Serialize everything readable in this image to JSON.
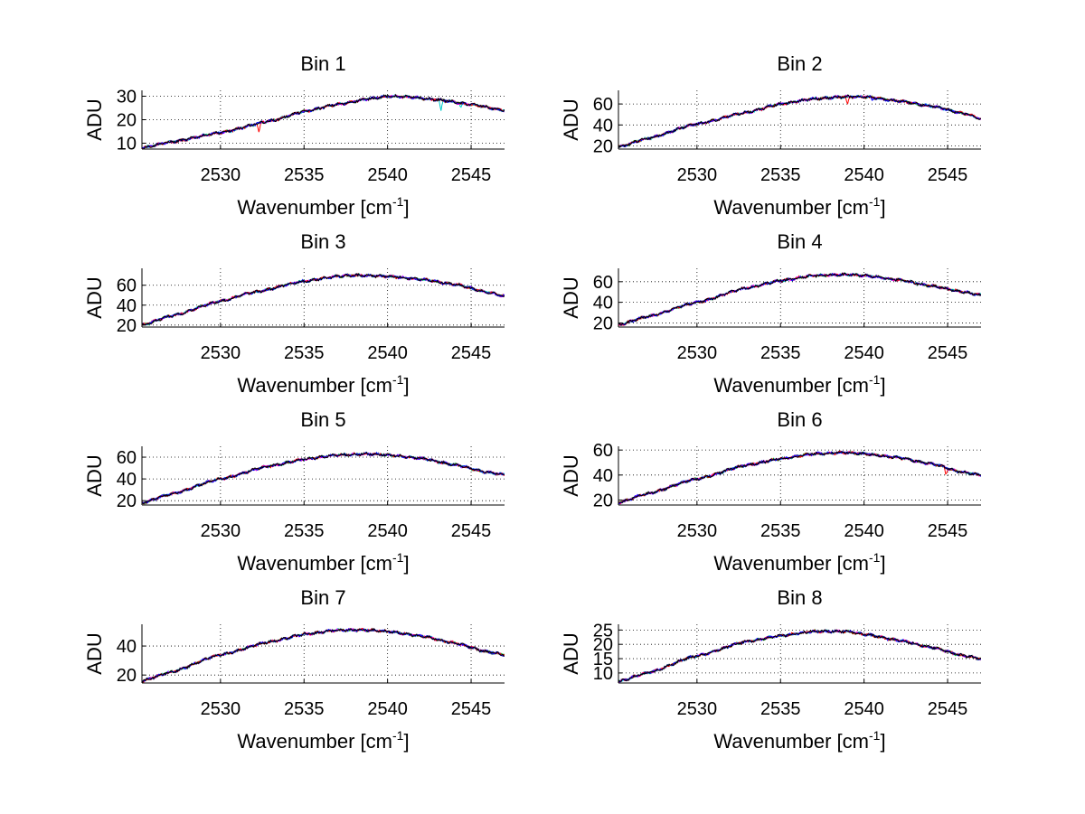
{
  "chart_data": [
    {
      "type": "line",
      "title": "Bin 1",
      "xlabel_prefix": "Wavenumber [cm",
      "xlabel_sup": "-1",
      "xlabel_suffix": "]",
      "ylabel": "ADU",
      "xlim": [
        2525.3,
        2547
      ],
      "ylim": [
        7.5,
        32.5
      ],
      "xticks": [
        2530,
        2535,
        2540,
        2545
      ],
      "yticks": [
        10,
        20,
        30
      ],
      "grid": true,
      "anchors": [
        [
          2525.3,
          8.0
        ],
        [
          2527,
          10.5
        ],
        [
          2530,
          14.5
        ],
        [
          2533,
          19.5
        ],
        [
          2535,
          23.5
        ],
        [
          2537,
          26.5
        ],
        [
          2539,
          29.0
        ],
        [
          2540,
          30.0
        ],
        [
          2541,
          29.8
        ],
        [
          2543,
          28.5
        ],
        [
          2545,
          26.5
        ],
        [
          2547,
          24.0
        ]
      ],
      "dips": [
        {
          "x": 2532.3,
          "depth": 4,
          "series": 0
        },
        {
          "x": 2543.2,
          "depth": 5,
          "series": 3
        },
        {
          "x": 2544.4,
          "depth": 2,
          "series": 3
        }
      ]
    },
    {
      "type": "line",
      "title": "Bin 2",
      "xlabel_prefix": "Wavenumber [cm",
      "xlabel_sup": "-1",
      "xlabel_suffix": "]",
      "ylabel": "ADU",
      "xlim": [
        2525.3,
        2547
      ],
      "ylim": [
        17,
        73
      ],
      "xticks": [
        2530,
        2535,
        2540,
        2545
      ],
      "yticks": [
        20,
        40,
        60
      ],
      "grid": true,
      "anchors": [
        [
          2525.3,
          19
        ],
        [
          2527,
          27
        ],
        [
          2530,
          41
        ],
        [
          2533,
          52
        ],
        [
          2535,
          60
        ],
        [
          2537,
          65
        ],
        [
          2539,
          67
        ],
        [
          2540,
          67
        ],
        [
          2542,
          63
        ],
        [
          2544,
          58
        ],
        [
          2546,
          51
        ],
        [
          2547,
          46
        ]
      ],
      "dips": [
        {
          "x": 2539.0,
          "depth": 8,
          "series": 0
        },
        {
          "x": 2540.5,
          "depth": 3,
          "series": 1
        }
      ]
    },
    {
      "type": "line",
      "title": "Bin 3",
      "xlabel_prefix": "Wavenumber [cm",
      "xlabel_sup": "-1",
      "xlabel_suffix": "]",
      "ylabel": "ADU",
      "xlim": [
        2525.3,
        2547
      ],
      "ylim": [
        18,
        77
      ],
      "xticks": [
        2530,
        2535,
        2540,
        2545
      ],
      "yticks": [
        20,
        40,
        60
      ],
      "grid": true,
      "anchors": [
        [
          2525.3,
          20
        ],
        [
          2527,
          29
        ],
        [
          2530,
          44
        ],
        [
          2532,
          53
        ],
        [
          2535,
          64
        ],
        [
          2537,
          69
        ],
        [
          2538,
          70
        ],
        [
          2540,
          69
        ],
        [
          2542,
          66
        ],
        [
          2544,
          61
        ],
        [
          2546,
          53
        ],
        [
          2547,
          49
        ]
      ],
      "dips": []
    },
    {
      "type": "line",
      "title": "Bin 4",
      "xlabel_prefix": "Wavenumber [cm",
      "xlabel_sup": "-1",
      "xlabel_suffix": "]",
      "ylabel": "ADU",
      "xlim": [
        2525.3,
        2547
      ],
      "ylim": [
        16,
        73
      ],
      "xticks": [
        2530,
        2535,
        2540,
        2545
      ],
      "yticks": [
        20,
        40,
        60
      ],
      "grid": true,
      "anchors": [
        [
          2525.3,
          18
        ],
        [
          2527,
          26
        ],
        [
          2530,
          40
        ],
        [
          2533,
          54
        ],
        [
          2535,
          61
        ],
        [
          2537,
          66
        ],
        [
          2539,
          67
        ],
        [
          2540,
          66
        ],
        [
          2542,
          62
        ],
        [
          2544,
          56
        ],
        [
          2546,
          50
        ],
        [
          2547,
          47
        ]
      ],
      "dips": []
    },
    {
      "type": "line",
      "title": "Bin 5",
      "xlabel_prefix": "Wavenumber [cm",
      "xlabel_sup": "-1",
      "xlabel_suffix": "]",
      "ylabel": "ADU",
      "xlim": [
        2525.3,
        2547
      ],
      "ylim": [
        16,
        70
      ],
      "xticks": [
        2530,
        2535,
        2540,
        2545
      ],
      "yticks": [
        20,
        40,
        60
      ],
      "grid": true,
      "anchors": [
        [
          2525.3,
          18
        ],
        [
          2527,
          26
        ],
        [
          2530,
          40
        ],
        [
          2533,
          52
        ],
        [
          2535,
          58
        ],
        [
          2537,
          62
        ],
        [
          2539,
          63
        ],
        [
          2540,
          62
        ],
        [
          2542,
          59
        ],
        [
          2544,
          53
        ],
        [
          2546,
          46
        ],
        [
          2547,
          44
        ]
      ],
      "dips": []
    },
    {
      "type": "line",
      "title": "Bin 6",
      "xlabel_prefix": "Wavenumber [cm",
      "xlabel_sup": "-1",
      "xlabel_suffix": "]",
      "ylabel": "ADU",
      "xlim": [
        2525.3,
        2547
      ],
      "ylim": [
        16,
        63
      ],
      "xticks": [
        2530,
        2535,
        2540,
        2545
      ],
      "yticks": [
        20,
        40,
        60
      ],
      "grid": true,
      "anchors": [
        [
          2525.3,
          18
        ],
        [
          2527,
          25
        ],
        [
          2530,
          37
        ],
        [
          2533,
          48
        ],
        [
          2535,
          53
        ],
        [
          2537,
          57
        ],
        [
          2539,
          58
        ],
        [
          2540,
          57
        ],
        [
          2542,
          54
        ],
        [
          2544,
          49
        ],
        [
          2546,
          42
        ],
        [
          2547,
          40
        ]
      ],
      "dips": [
        {
          "x": 2544.9,
          "depth": 5,
          "series": 0
        }
      ]
    },
    {
      "type": "line",
      "title": "Bin 7",
      "xlabel_prefix": "Wavenumber [cm",
      "xlabel_sup": "-1",
      "xlabel_suffix": "]",
      "ylabel": "ADU",
      "xlim": [
        2525.3,
        2547
      ],
      "ylim": [
        14.5,
        55
      ],
      "xticks": [
        2530,
        2535,
        2540,
        2545
      ],
      "yticks": [
        20,
        40
      ],
      "grid": true,
      "anchors": [
        [
          2525.3,
          16
        ],
        [
          2527,
          22
        ],
        [
          2530,
          34
        ],
        [
          2533,
          43
        ],
        [
          2535,
          48
        ],
        [
          2537,
          51
        ],
        [
          2539,
          51
        ],
        [
          2540,
          50
        ],
        [
          2542,
          47
        ],
        [
          2544,
          42
        ],
        [
          2546,
          36
        ],
        [
          2547,
          34
        ]
      ],
      "dips": []
    },
    {
      "type": "line",
      "title": "Bin 8",
      "xlabel_prefix": "Wavenumber [cm",
      "xlabel_sup": "-1",
      "xlabel_suffix": "]",
      "ylabel": "ADU",
      "xlim": [
        2525.3,
        2547
      ],
      "ylim": [
        6.5,
        27
      ],
      "xticks": [
        2530,
        2535,
        2540,
        2545
      ],
      "yticks": [
        10,
        15,
        20,
        25
      ],
      "grid": true,
      "anchors": [
        [
          2525.3,
          7
        ],
        [
          2527,
          10
        ],
        [
          2530,
          16
        ],
        [
          2533,
          21
        ],
        [
          2535,
          23
        ],
        [
          2537,
          24.5
        ],
        [
          2539,
          24.5
        ],
        [
          2540,
          23.5
        ],
        [
          2542,
          21.5
        ],
        [
          2544,
          19
        ],
        [
          2546,
          16
        ],
        [
          2547,
          15
        ]
      ],
      "dips": []
    }
  ],
  "series_colors": [
    "#ff0000",
    "#0000ff",
    "#00aa00",
    "#00cccc",
    "#ff00ff",
    "#000000"
  ]
}
